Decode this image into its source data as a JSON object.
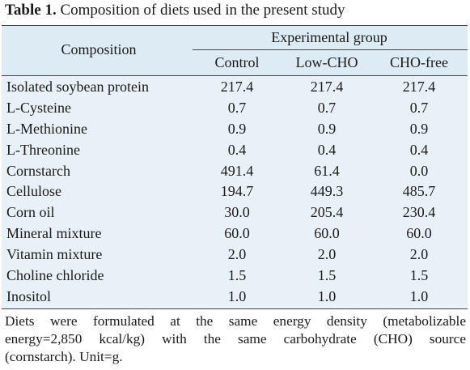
{
  "caption": {
    "label": "Table 1.",
    "text": "Composition of diets used in the present study"
  },
  "table": {
    "header": {
      "composition": "Composition",
      "group": "Experimental group",
      "columns": [
        "Control",
        "Low-CHO",
        "CHO-free"
      ]
    },
    "rows": [
      {
        "name": "Isolated soybean protein",
        "values": [
          "217.4",
          "217.4",
          "217.4"
        ]
      },
      {
        "name": "L-Cysteine",
        "values": [
          "0.7",
          "0.7",
          "0.7"
        ]
      },
      {
        "name": "L-Methionine",
        "values": [
          "0.9",
          "0.9",
          "0.9"
        ]
      },
      {
        "name": "L-Threonine",
        "values": [
          "0.4",
          "0.4",
          "0.4"
        ]
      },
      {
        "name": "Cornstarch",
        "values": [
          "491.4",
          "61.4",
          "0.0"
        ]
      },
      {
        "name": "Cellulose",
        "values": [
          "194.7",
          "449.3",
          "485.7"
        ]
      },
      {
        "name": "Corn oil",
        "values": [
          "30.0",
          "205.4",
          "230.4"
        ]
      },
      {
        "name": "Mineral mixture",
        "values": [
          "60.0",
          "60.0",
          "60.0"
        ]
      },
      {
        "name": "Vitamin mixture",
        "values": [
          "2.0",
          "2.0",
          "2.0"
        ]
      },
      {
        "name": "Choline chloride",
        "values": [
          "1.5",
          "1.5",
          "1.5"
        ]
      },
      {
        "name": "Inositol",
        "values": [
          "1.0",
          "1.0",
          "1.0"
        ]
      }
    ]
  },
  "footnote": {
    "lines": [
      "Diets were formulated at the same energy density (metabolizable",
      "energy=2,850 kcal/kg) with the same carbohydrate (CHO) source",
      "(cornstarch). Unit=g."
    ]
  }
}
